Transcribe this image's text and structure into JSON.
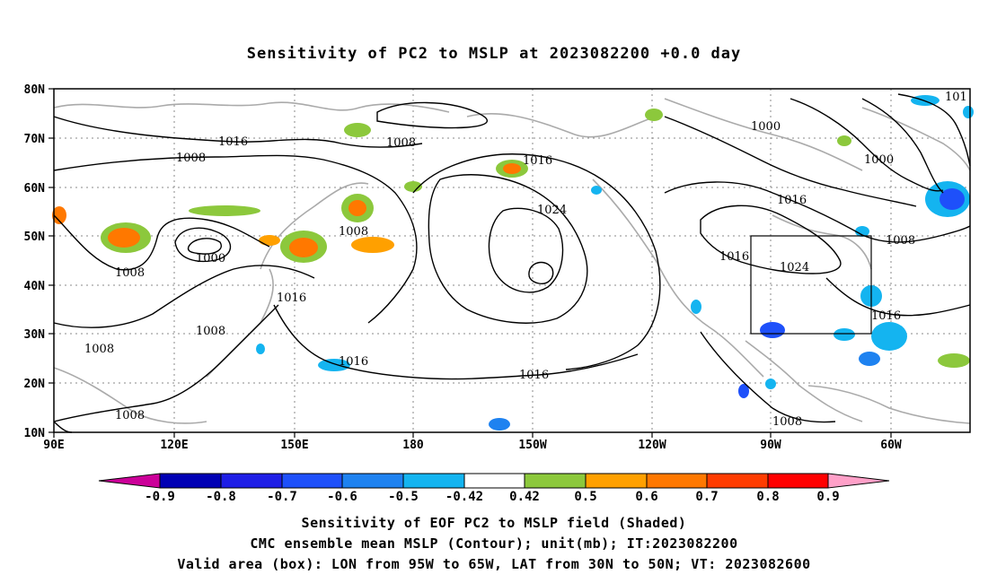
{
  "title": "Sensitivity of PC2 to MSLP at 2023082200 +0.0 day",
  "axes": {
    "lat_labels": [
      "80N",
      "70N",
      "60N",
      "50N",
      "40N",
      "30N",
      "20N",
      "10N"
    ],
    "lon_labels": [
      "90E",
      "120E",
      "150E",
      "180",
      "150W",
      "120W",
      "90W",
      "60W"
    ]
  },
  "contour_labels": [
    "1016",
    "1008",
    "1008",
    "1016",
    "1008",
    "1024",
    "1000",
    "1008",
    "1016",
    "1008",
    "1008",
    "1016",
    "1016",
    "1008",
    "1000",
    "1000",
    "1016",
    "1016",
    "1024",
    "1008",
    "1016",
    "1008",
    "101"
  ],
  "colorbar": {
    "labels": [
      "-0.9",
      "-0.8",
      "-0.7",
      "-0.6",
      "-0.5",
      "-0.42",
      "0.42",
      "0.5",
      "0.6",
      "0.7",
      "0.8",
      "0.9"
    ],
    "colors": [
      "#cc0099",
      "#0000b4",
      "#1e1ee6",
      "#1e50fa",
      "#1e82f0",
      "#14b4f0",
      "#ffffff",
      "#8cc83c",
      "#ffa000",
      "#ff7800",
      "#ff3c00",
      "#ff0000",
      "#ffa0c8"
    ]
  },
  "captions": [
    "Sensitivity of EOF PC2 to MSLP field (Shaded)",
    "CMC ensemble mean MSLP (Contour); unit(mb); IT:2023082200",
    "Valid area (box): LON from 95W to 65W, LAT from 30N to 50N; VT: 2023082600"
  ]
}
